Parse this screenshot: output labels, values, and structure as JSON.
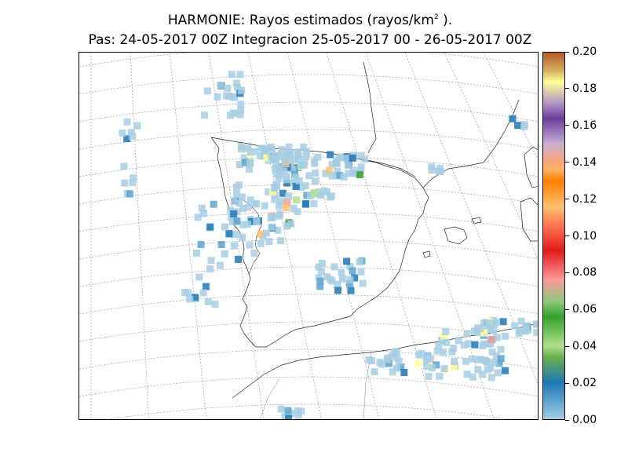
{
  "title": {
    "line1_prefix": "HARMONIE: Rayos estimados  (rayos/km",
    "line1_sup": "2",
    "line1_suffix": " ).",
    "line2": "Pas: 24-05-2017 00Z Integracion 25-05-2017 00 - 26-05-2017 00Z"
  },
  "colorbar": {
    "min": 0.0,
    "max": 0.2,
    "labels": [
      "0.00",
      "0.02",
      "0.04",
      "0.06",
      "0.08",
      "0.10",
      "0.12",
      "0.14",
      "0.16",
      "0.18",
      "0.20"
    ],
    "colors": [
      "#a6cee3",
      "#1f78b4",
      "#b2df8a",
      "#33a02c",
      "#fb9a99",
      "#e31a1c",
      "#fdbf6f",
      "#ff7f00",
      "#cab2d6",
      "#6a3d9a",
      "#ffff99",
      "#b15928"
    ]
  }
}
